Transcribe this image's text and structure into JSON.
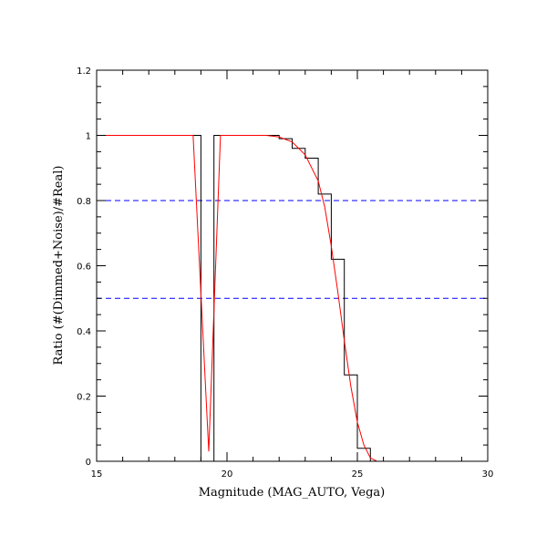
{
  "chart_data": {
    "type": "line",
    "title": "",
    "xlabel": "Magnitude (MAG_AUTO, Vega)",
    "ylabel": "Ratio (#(Dimmed+Noise)/#Real)",
    "xlim": [
      15,
      30
    ],
    "ylim": [
      0,
      1.2
    ],
    "x_ticks": [
      "15",
      "20",
      "25",
      "30"
    ],
    "y_ticks": [
      "0",
      "0.2",
      "0.4",
      "0.6",
      "0.8",
      "1",
      "1.2"
    ],
    "x_minor_step": 1,
    "y_minor_step": 0.05,
    "grid": false,
    "series": [
      {
        "style": "histogram-step",
        "color": "#000000",
        "bin_edges": [
          15,
          19.0,
          19.5,
          22.0,
          22.5,
          23.0,
          23.5,
          24.0,
          24.5,
          25.0,
          25.5,
          30
        ],
        "values": [
          1.0,
          0.0,
          1.0,
          0.99,
          0.96,
          0.93,
          0.82,
          0.62,
          0.265,
          0.04,
          0.0
        ]
      },
      {
        "style": "smooth-fit",
        "color": "#ff0000",
        "x": [
          15,
          18.7,
          19.3,
          19.75,
          21.5,
          22.0,
          22.5,
          23.0,
          23.5,
          23.75,
          24.0,
          24.25,
          24.5,
          24.75,
          25.0,
          25.25,
          25.5,
          25.75,
          26.0,
          30
        ],
        "y": [
          1.0,
          1.0,
          0.03,
          1.0,
          1.0,
          0.995,
          0.98,
          0.94,
          0.86,
          0.78,
          0.66,
          0.52,
          0.37,
          0.23,
          0.12,
          0.05,
          0.01,
          0.0,
          0.0,
          0.0
        ]
      }
    ],
    "reference_lines": [
      {
        "y": 0.8,
        "color": "#0000ff",
        "style": "dashed"
      },
      {
        "y": 0.5,
        "color": "#0000ff",
        "style": "dashed"
      }
    ]
  }
}
